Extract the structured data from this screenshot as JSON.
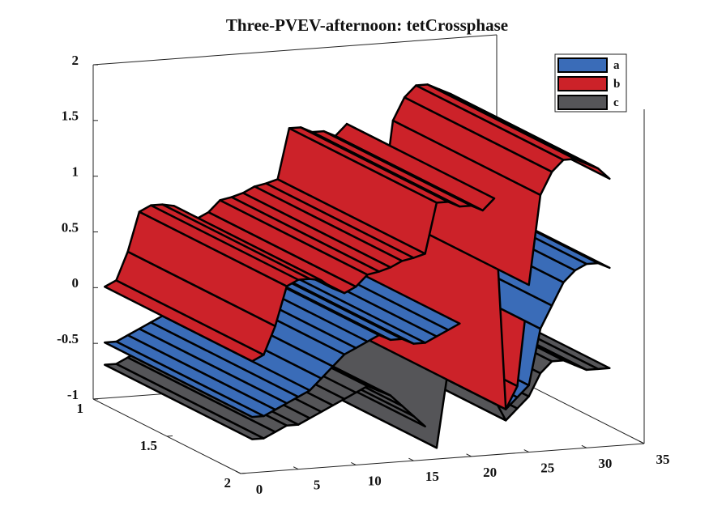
{
  "chart_data": {
    "type": "surface3d",
    "title": "Three-PVEV-afternoon: tetCrossphase",
    "x": [
      1,
      2,
      3,
      4,
      5,
      6,
      7,
      8,
      9,
      10,
      11,
      12,
      13,
      14,
      15,
      16,
      17,
      18,
      19,
      20,
      21,
      22,
      23,
      24,
      25,
      26,
      27,
      28,
      29,
      30,
      31,
      32
    ],
    "series": [
      {
        "name": "a",
        "color": "#3a6cb8",
        "values": [
          -0.5,
          -0.5,
          -0.45,
          -0.4,
          -0.35,
          -0.3,
          -0.2,
          -0.1,
          0,
          0.05,
          0.1,
          0.15,
          0.1,
          0.1,
          0.05,
          0.05,
          0.1,
          0.15,
          0.2,
          0.2,
          0.1,
          0,
          -0.6,
          -0.5,
          -0.4,
          0.1,
          0.3,
          0.5,
          0.6,
          0.65,
          0.65,
          0.6
        ]
      },
      {
        "name": "b",
        "color": "#cc2229",
        "values": [
          0,
          0.05,
          0.3,
          0.65,
          0.7,
          0.7,
          0.68,
          0.6,
          0.55,
          0.6,
          0.7,
          0.72,
          0.75,
          0.8,
          0.82,
          0.85,
          1.3,
          1.3,
          1.25,
          1.25,
          1.2,
          1.3,
          -0.6,
          -0.4,
          0.5,
          1.3,
          1.5,
          1.6,
          1.6,
          1.55,
          1.5,
          1.4
        ]
      },
      {
        "name": "c",
        "color": "#555558",
        "values": [
          -0.7,
          -0.7,
          -0.65,
          -0.6,
          -0.6,
          -0.55,
          -0.5,
          -0.45,
          -0.4,
          -0.35,
          -0.3,
          -0.35,
          -0.4,
          -0.5,
          -0.6,
          -0.7,
          -0.9,
          -0.2,
          -0.3,
          -0.35,
          -0.4,
          -0.5,
          -0.7,
          -0.6,
          -0.5,
          -0.3,
          -0.2,
          -0.2,
          -0.25,
          -0.3,
          -0.3,
          -0.3
        ]
      }
    ],
    "xlim": [
      0,
      35
    ],
    "xticks": [
      0,
      5,
      10,
      15,
      20,
      25,
      30,
      35
    ],
    "ylim": [
      1,
      2
    ],
    "yticks": [
      1,
      1.5,
      2
    ],
    "zlim": [
      -1,
      2
    ],
    "zticks": [
      -1,
      -0.5,
      0,
      0.5,
      1,
      1.5,
      2
    ],
    "legend": "top-right"
  }
}
